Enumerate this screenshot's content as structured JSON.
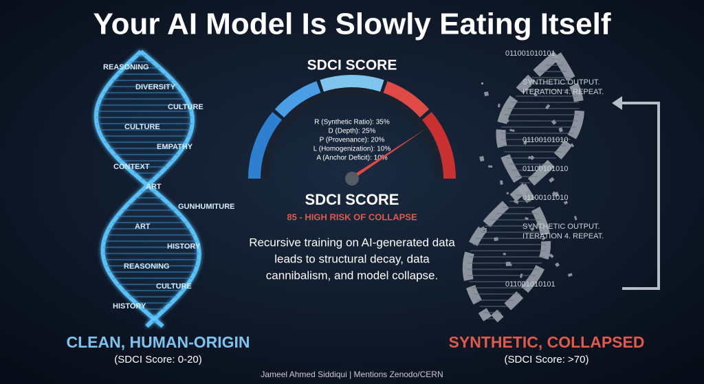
{
  "title": "Your AI Model Is Slowly Eating Itself",
  "gauge": {
    "heading": "SDCI SCORE",
    "components": [
      "R (Synthetic Ratio): 35%",
      "D (Depth): 25%",
      "P (Provenance): 20%",
      "L (Homogenization): 10%",
      "A (Anchor Deficit): 10%"
    ],
    "label": "SDCI SCORE",
    "result": "85 - HIGH RISK OF COLLAPSE"
  },
  "description": [
    "Recursive training on AI-generated data",
    "leads to structural decay, data",
    "cannibalism, and model collapse."
  ],
  "left": {
    "words": [
      "REASONING",
      "DIVERSITY",
      "CULTURE",
      "CULTURE",
      "EMPATHY",
      "CONTEXT",
      "ART",
      "GUNHUMITURE",
      "ART",
      "HISTORY",
      "REASONING",
      "CULTURE",
      "HISTORY"
    ],
    "title": "CLEAN, HUMAN-ORIGIN",
    "subtitle": "(SDCI Score: 0-20)"
  },
  "right": {
    "texts": [
      "011001010101",
      "SYNTHETIC OUTPUT.",
      "ITERATION 4. REPEAT.",
      "01100101010",
      "01100101010",
      "01100101010",
      "SYNTHETIC OUTPUT.",
      "ITERATION 4. REPEAT.",
      "011001010101"
    ],
    "title": "SYNTHETIC, COLLAPSED",
    "subtitle": "(SDCI Score: >70)"
  },
  "footer": "Jameel Ahmed Siddiqui | Mentions Zenodo/CERN"
}
